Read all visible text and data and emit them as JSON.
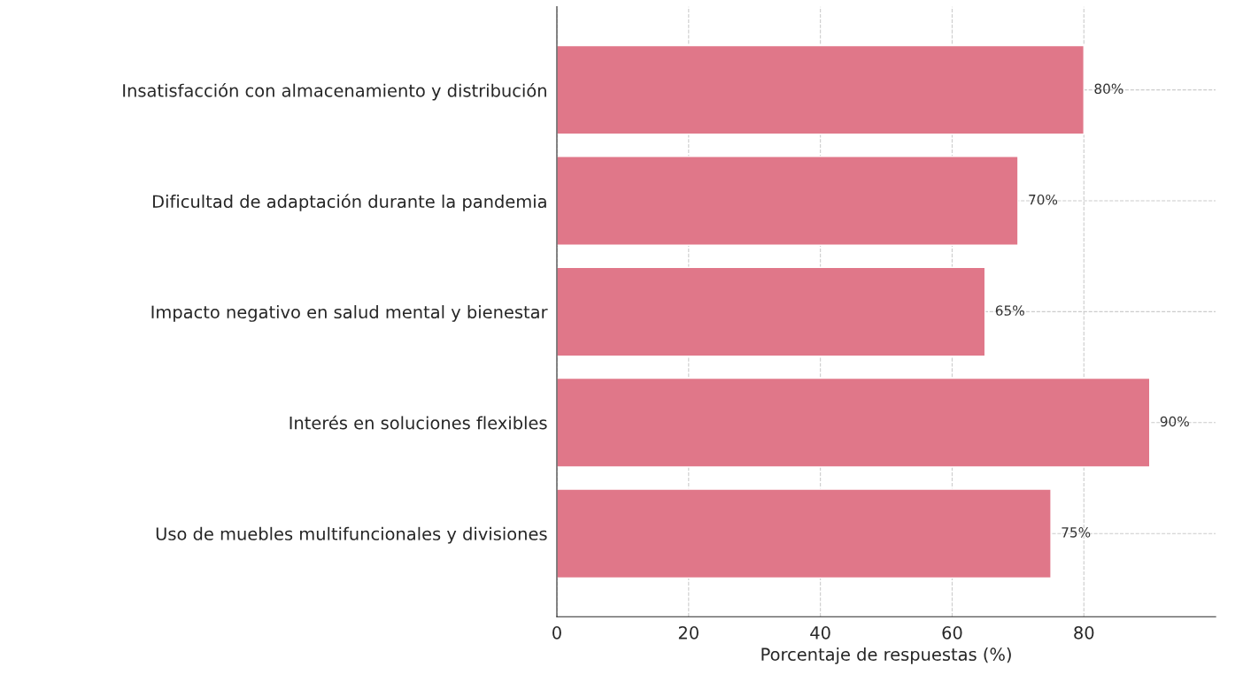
{
  "chart_data": {
    "type": "bar",
    "orientation": "horizontal",
    "xlabel": "Porcentaje de respuestas (%)",
    "categories": [
      "Insatisfacción con almacenamiento y distribución",
      "Dificultad de adaptación durante la pandemia",
      "Impacto negativo en salud mental y bienestar",
      "Interés en soluciones flexibles",
      "Uso de muebles multifuncionales y divisiones"
    ],
    "values": [
      80,
      70,
      65,
      90,
      75
    ],
    "value_labels": [
      "80%",
      "70%",
      "65%",
      "90%",
      "75%"
    ],
    "color": "#e07789",
    "xlim": [
      0,
      100
    ],
    "xticks": [
      0,
      20,
      40,
      60,
      80
    ],
    "grid": true
  }
}
